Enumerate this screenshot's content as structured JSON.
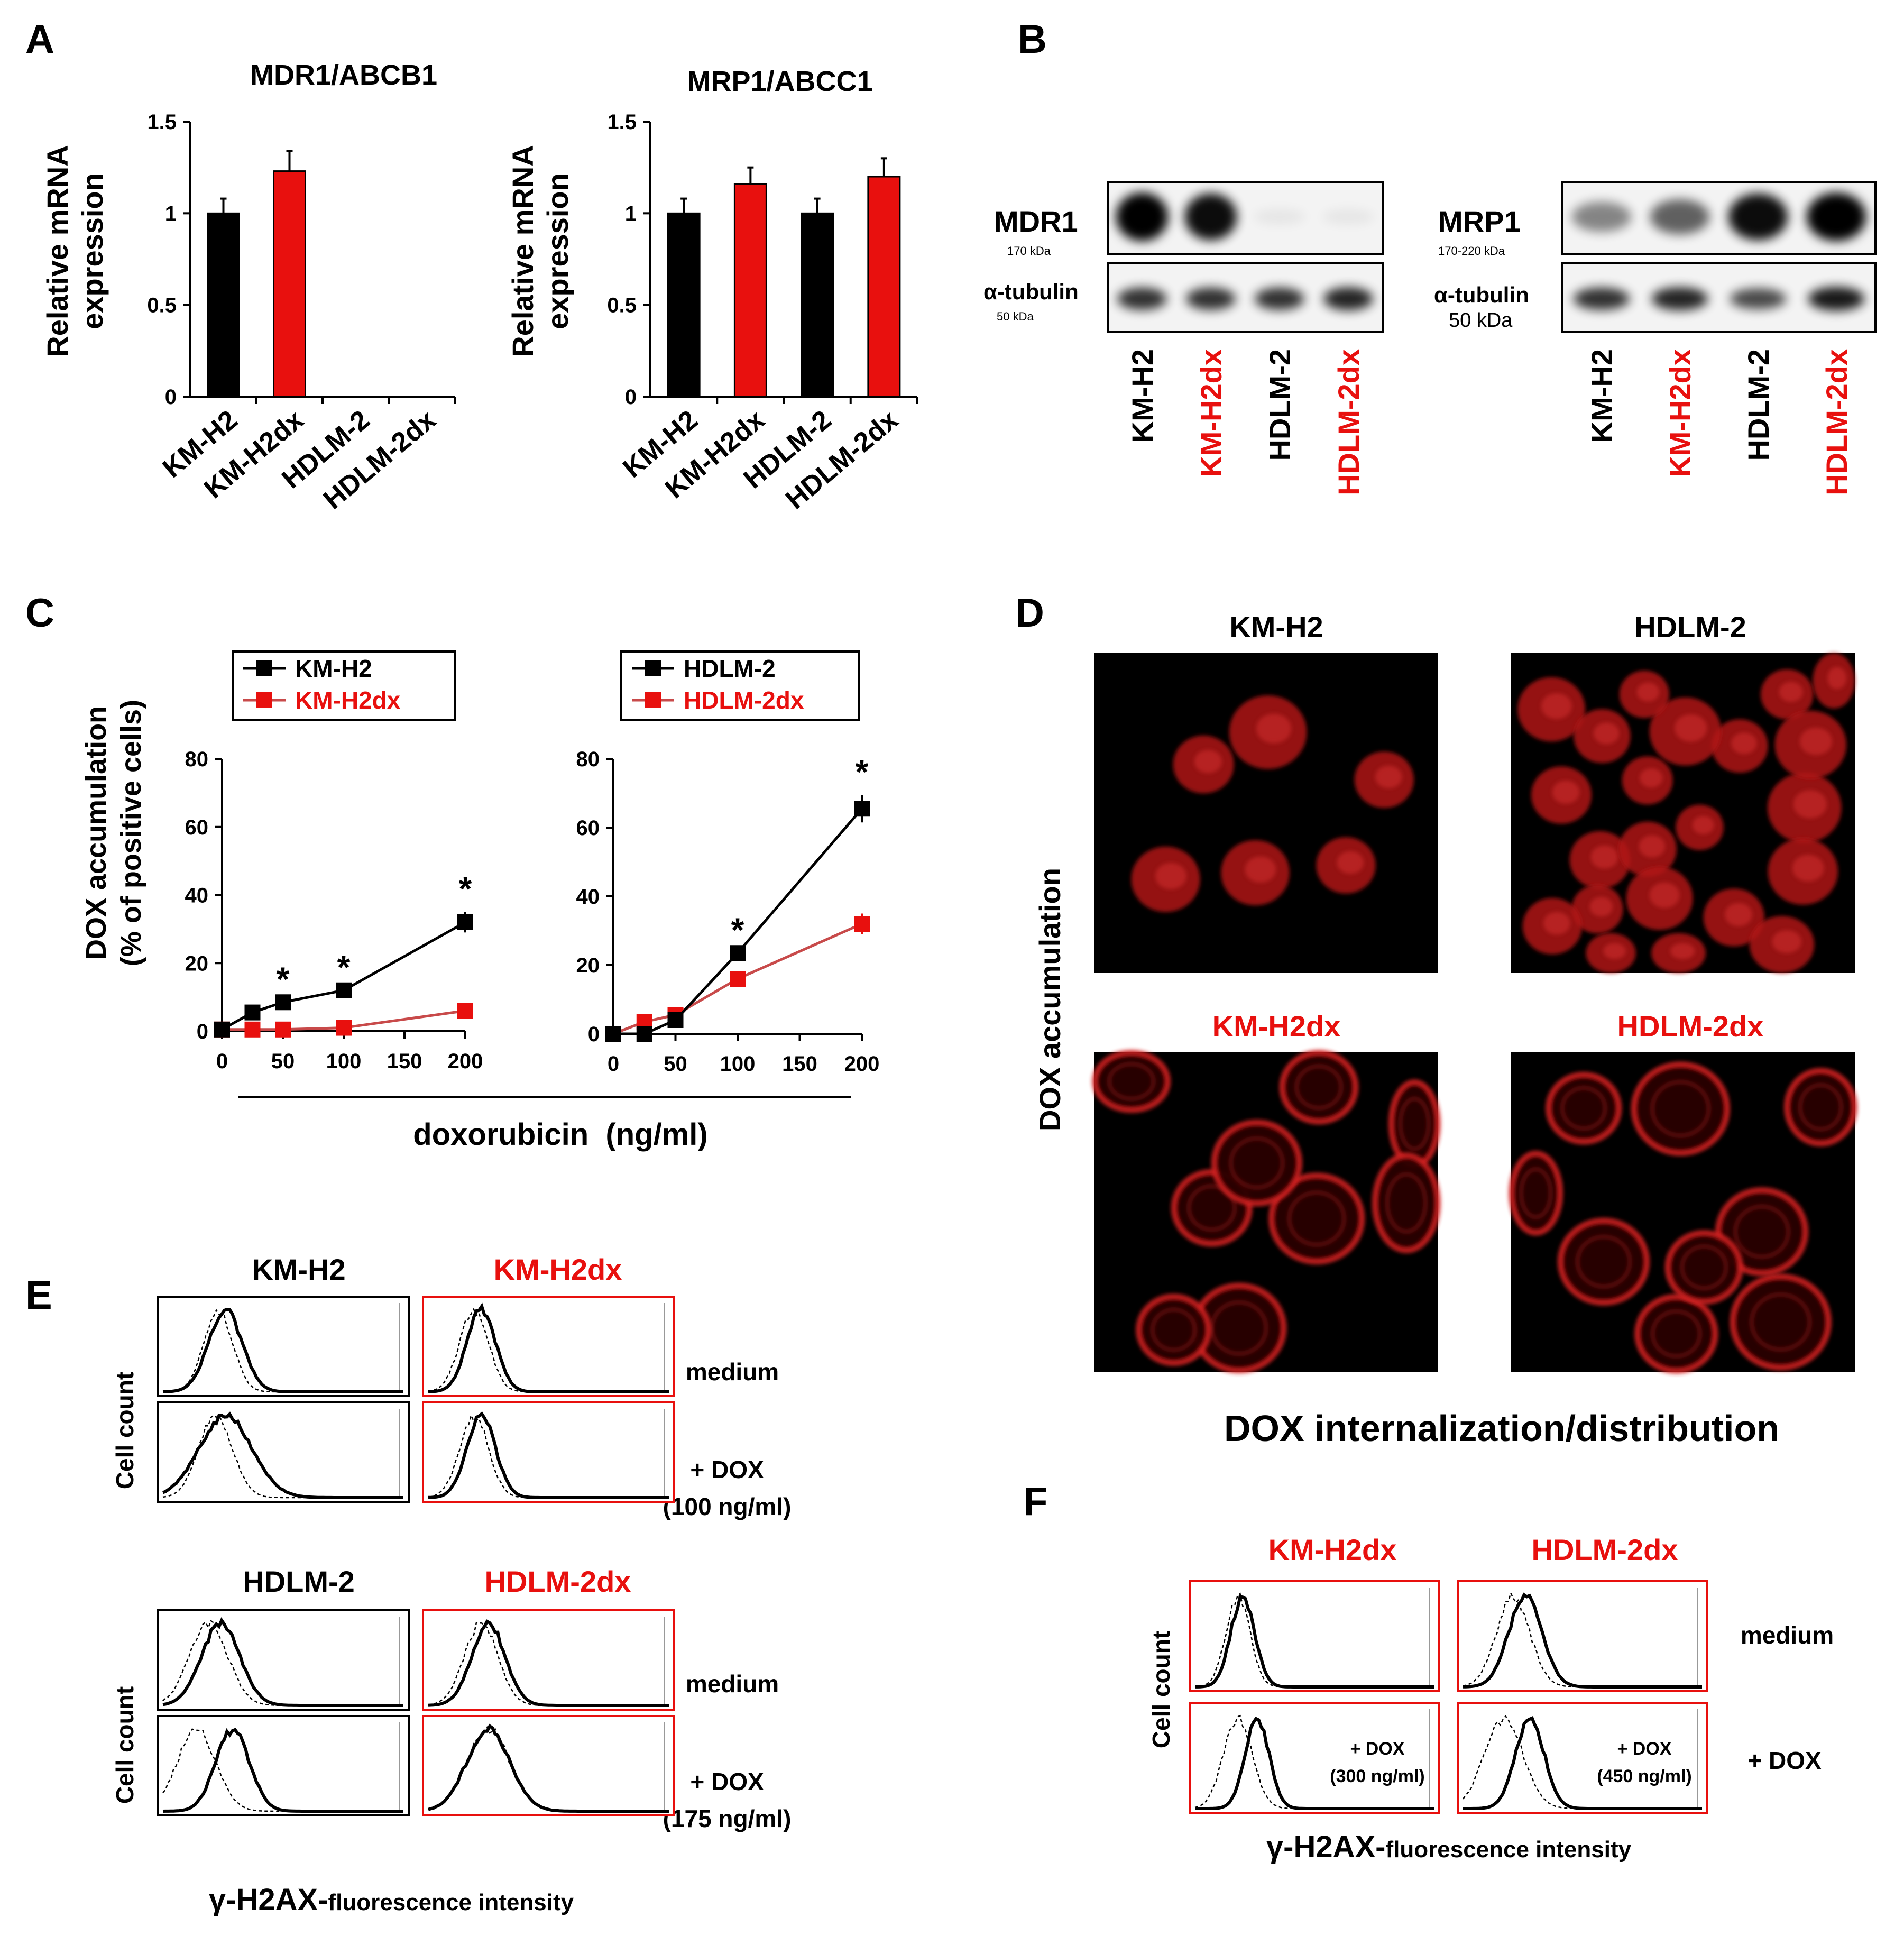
{
  "colors": {
    "black": "#000000",
    "red": "#e8100e",
    "red_line": "#c84a4a",
    "blot_bg": "#f3f3f3"
  },
  "panel_letters": [
    "A",
    "B",
    "C",
    "D",
    "E",
    "F"
  ],
  "panelA": {
    "charts": [
      {
        "title": "MDR1/ABCB1",
        "ylabel": [
          "Relative mRNA",
          "expression"
        ],
        "yticks": [
          "1.5",
          "1",
          "0.5",
          "0"
        ],
        "categories": [
          "KM-H2",
          "KM-H2dx",
          "HDLM-2",
          "HDLM-2dx"
        ]
      },
      {
        "title": "MRP1/ABCC1",
        "ylabel": [
          "Relative mRNA",
          "expression"
        ],
        "yticks": [
          "1.5",
          "1",
          "0.5",
          "0"
        ],
        "categories": [
          "KM-H2",
          "KM-H2dx",
          "HDLM-2",
          "HDLM-2dx"
        ]
      }
    ]
  },
  "panelB": {
    "left": {
      "protein": "MDR1",
      "protein_kda": "170 kDa",
      "loading": "α-tubulin",
      "loading_kda": "50 kDa",
      "lanes": [
        "KM-H2",
        "KM-H2dx",
        "HDLM-2",
        "HDLM-2dx"
      ],
      "protein_intensity": [
        1.0,
        0.95,
        0.03,
        0.02
      ],
      "tubulin_intensity": [
        0.8,
        0.8,
        0.8,
        0.85
      ]
    },
    "right": {
      "protein": "MRP1",
      "protein_kda": "170-220 kDa",
      "loading": "α-tubulin",
      "loading_kda": "50 kDa",
      "lanes": [
        "KM-H2",
        "KM-H2dx",
        "HDLM-2",
        "HDLM-2dx"
      ],
      "protein_intensity": [
        0.45,
        0.6,
        0.95,
        1.0
      ],
      "tubulin_intensity": [
        0.8,
        0.85,
        0.7,
        0.9
      ]
    }
  },
  "panelC": {
    "ylabel": [
      "DOX accumulation",
      "(% of positive cells)"
    ],
    "xlabel": "doxorubicin  (ng/ml)",
    "yticks": [
      "80",
      "60",
      "40",
      "20",
      "0"
    ],
    "xticks": [
      "0",
      "50",
      "100",
      "150",
      "200"
    ],
    "charts": [
      {
        "legend": [
          "KM-H2",
          "KM-H2dx"
        ],
        "asterisks": [
          "*",
          "*",
          "*"
        ]
      },
      {
        "legend": [
          "HDLM-2",
          "HDLM-2dx"
        ],
        "asterisks": [
          "*",
          "*"
        ]
      }
    ]
  },
  "panelD": {
    "ylabel": "DOX accumulation",
    "xlabel": "DOX internalization/distribution",
    "images": [
      {
        "title": "KM-H2",
        "pattern": "nuclear"
      },
      {
        "title": "HDLM-2",
        "pattern": "nuclear"
      },
      {
        "title": "KM-H2dx",
        "pattern": "membrane"
      },
      {
        "title": "HDLM-2dx",
        "pattern": "membrane"
      }
    ]
  },
  "panelE": {
    "ylabel": "Cell count",
    "xlabel_main": "γ-H2AX-",
    "xlabel_small": "fluorescence intensity",
    "top_titles": [
      "KM-H2",
      "KM-H2dx"
    ],
    "bottom_titles": [
      "HDLM-2",
      "HDLM-2dx"
    ],
    "row_labels": [
      "medium",
      "+ DOX",
      "(100 ng/ml)",
      "medium",
      "+ DOX",
      "(175 ng/ml)"
    ]
  },
  "panelF": {
    "ylabel": "Cell count",
    "xlabel_main": "γ-H2AX-",
    "xlabel_small": "fluorescence intensity",
    "titles": [
      "KM-H2dx",
      "HDLM-2dx"
    ],
    "inset_labels": [
      "+ DOX",
      "(300 ng/ml)",
      "+ DOX",
      "(450 ng/ml)"
    ],
    "row_labels": [
      "medium",
      "+ DOX"
    ]
  },
  "chart_data": [
    {
      "type": "bar",
      "title": "MDR1/ABCB1",
      "ylabel": "Relative mRNA expression",
      "ylim": [
        0,
        1.5
      ],
      "categories": [
        "KM-H2",
        "KM-H2dx",
        "HDLM-2",
        "HDLM-2dx"
      ],
      "values": [
        1.0,
        1.23,
        null,
        null
      ],
      "errors": [
        0.08,
        0.11,
        null,
        null
      ],
      "bar_colors": [
        "#000000",
        "#e8100e",
        "#000000",
        "#e8100e"
      ]
    },
    {
      "type": "bar",
      "title": "MRP1/ABCC1",
      "ylabel": "Relative mRNA expression",
      "ylim": [
        0,
        1.5
      ],
      "categories": [
        "KM-H2",
        "KM-H2dx",
        "HDLM-2",
        "HDLM-2dx"
      ],
      "values": [
        1.0,
        1.16,
        1.0,
        1.2
      ],
      "errors": [
        0.08,
        0.09,
        0.08,
        0.1
      ],
      "bar_colors": [
        "#000000",
        "#e8100e",
        "#000000",
        "#e8100e"
      ]
    },
    {
      "type": "line",
      "xlabel": "doxorubicin  (ng/ml)",
      "ylabel": "DOX accumulation (% of positive cells)",
      "xlim": [
        0,
        200
      ],
      "ylim": [
        0,
        80
      ],
      "series": [
        {
          "name": "KM-H2",
          "color": "#000000",
          "x": [
            0,
            25,
            50,
            100,
            200
          ],
          "y": [
            0.5,
            5.5,
            8.5,
            12,
            32
          ],
          "err": [
            0,
            0,
            0,
            0,
            3
          ]
        },
        {
          "name": "KM-H2dx",
          "color": "#e8100e",
          "x": [
            0,
            25,
            50,
            100,
            200
          ],
          "y": [
            0.5,
            0.5,
            0.5,
            1,
            6
          ],
          "err": [
            0,
            0,
            0,
            0,
            0
          ]
        }
      ],
      "significant_x": [
        50,
        100,
        200
      ]
    },
    {
      "type": "line",
      "xlabel": "doxorubicin  (ng/ml)",
      "ylabel": "DOX accumulation (% of positive cells)",
      "xlim": [
        0,
        200
      ],
      "ylim": [
        0,
        80
      ],
      "series": [
        {
          "name": "HDLM-2",
          "color": "#000000",
          "x": [
            0,
            25,
            50,
            100,
            200
          ],
          "y": [
            0,
            0,
            4,
            23.5,
            65.5
          ],
          "err": [
            0,
            0,
            0,
            0,
            4
          ]
        },
        {
          "name": "HDLM-2dx",
          "color": "#e8100e",
          "x": [
            0,
            25,
            50,
            100,
            200
          ],
          "y": [
            0,
            3.5,
            5.5,
            16,
            32
          ],
          "err": [
            0,
            0,
            0,
            0,
            3
          ]
        }
      ],
      "significant_x": [
        100,
        200
      ]
    },
    {
      "type": "histogram",
      "panel": "E",
      "panels": [
        {
          "cell": "KM-H2",
          "condition": "medium",
          "treated_peak": 0.26,
          "treated_width": 0.07,
          "control_peak": 0.23,
          "control_width": 0.06
        },
        {
          "cell": "KM-H2dx",
          "condition": "medium",
          "treated_peak": 0.22,
          "treated_width": 0.06,
          "control_peak": 0.19,
          "control_width": 0.06
        },
        {
          "cell": "KM-H2",
          "condition": "+ DOX (100 ng/ml)",
          "treated_peak": 0.26,
          "treated_width": 0.11,
          "control_peak": 0.22,
          "control_width": 0.07
        },
        {
          "cell": "KM-H2dx",
          "condition": "+ DOX (100 ng/ml)",
          "treated_peak": 0.22,
          "treated_width": 0.06,
          "control_peak": 0.19,
          "control_width": 0.06
        },
        {
          "cell": "HDLM-2",
          "condition": "medium",
          "treated_peak": 0.24,
          "treated_width": 0.08,
          "control_peak": 0.19,
          "control_width": 0.08
        },
        {
          "cell": "HDLM-2dx",
          "condition": "medium",
          "treated_peak": 0.25,
          "treated_width": 0.07,
          "control_peak": 0.22,
          "control_width": 0.07
        },
        {
          "cell": "HDLM-2",
          "condition": "+ DOX (175 ng/ml)",
          "treated_peak": 0.29,
          "treated_width": 0.07,
          "control_peak": 0.14,
          "control_width": 0.08
        },
        {
          "cell": "HDLM-2dx",
          "condition": "+ DOX (175 ng/ml)",
          "treated_peak": 0.25,
          "treated_width": 0.09,
          "control_peak": 0.25,
          "control_width": 0.09
        }
      ]
    },
    {
      "type": "histogram",
      "panel": "F",
      "panels": [
        {
          "cell": "KM-H2dx",
          "condition": "medium",
          "treated_peak": 0.2,
          "treated_width": 0.05,
          "control_peak": 0.18,
          "control_width": 0.05
        },
        {
          "cell": "HDLM-2dx",
          "condition": "medium",
          "treated_peak": 0.26,
          "treated_width": 0.07,
          "control_peak": 0.21,
          "control_width": 0.07
        },
        {
          "cell": "KM-H2dx",
          "condition": "+ DOX (300 ng/ml)",
          "treated_peak": 0.26,
          "treated_width": 0.05,
          "control_peak": 0.18,
          "control_width": 0.06
        },
        {
          "cell": "HDLM-2dx",
          "condition": "+ DOX (450 ng/ml)",
          "treated_peak": 0.28,
          "treated_width": 0.06,
          "control_peak": 0.17,
          "control_width": 0.08
        }
      ]
    }
  ]
}
